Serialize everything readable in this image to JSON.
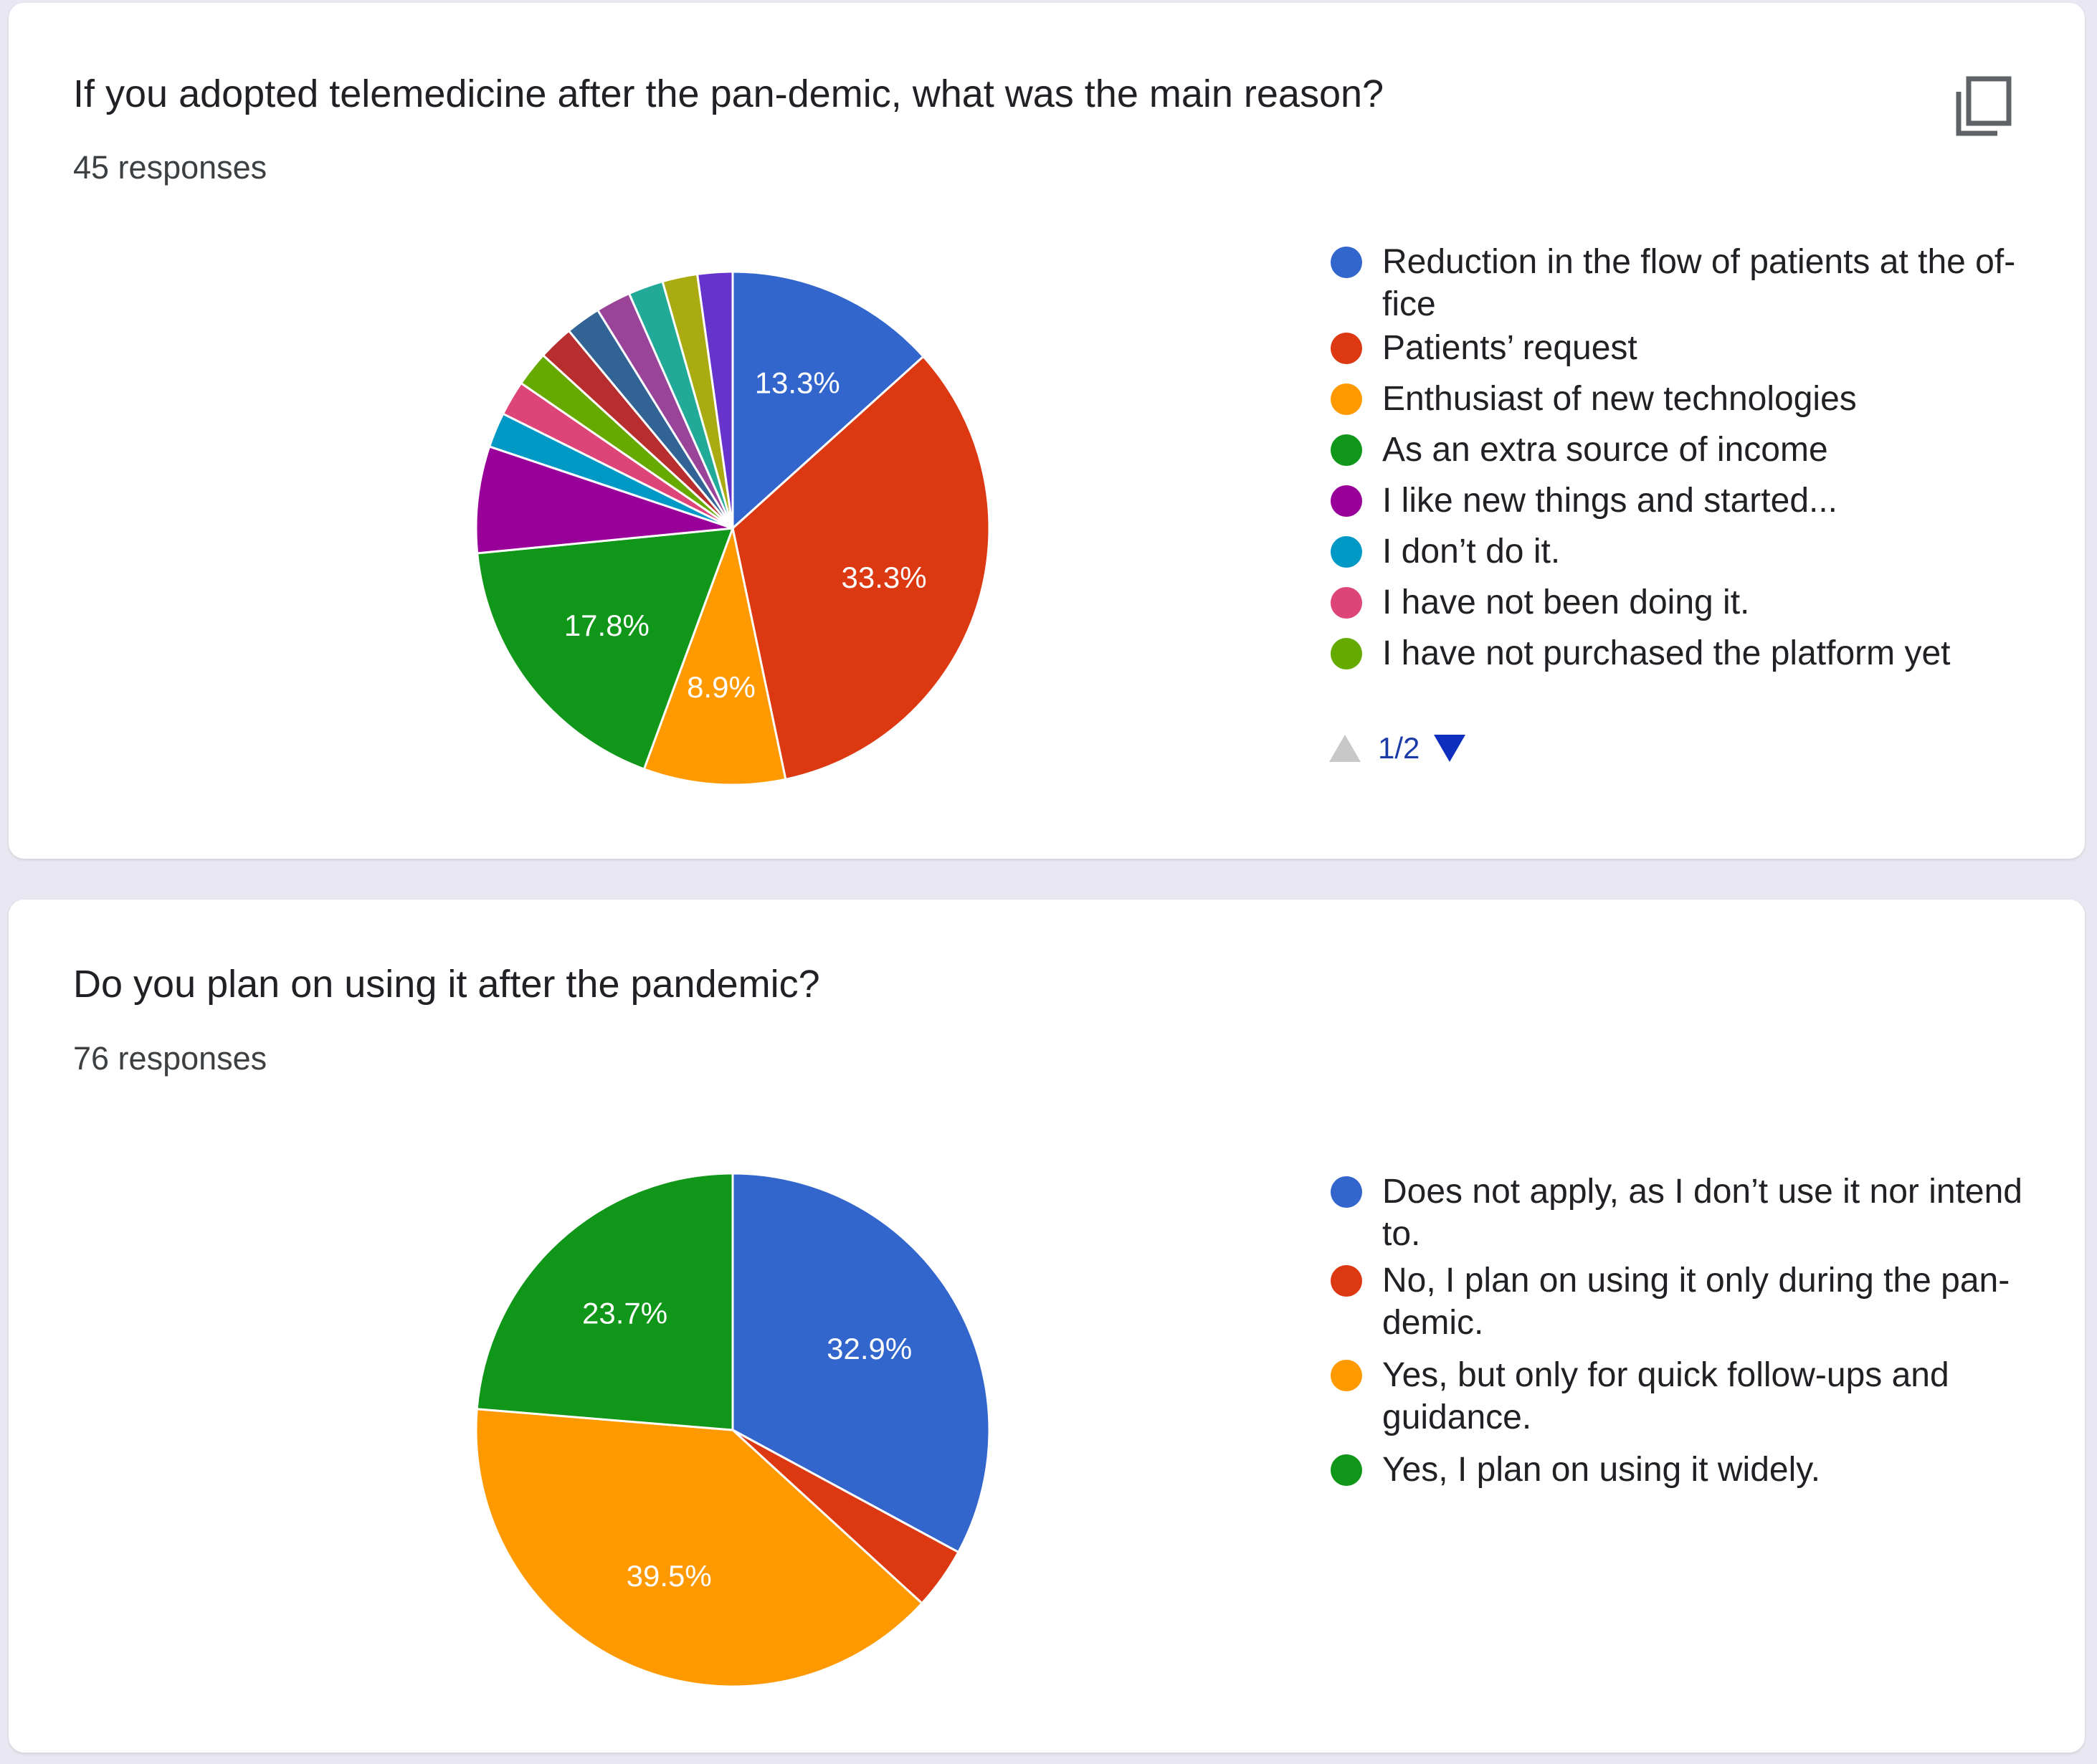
{
  "charts": [
    {
      "title": "If you adopted telemedicine after the pan-demic, what was the main reason?",
      "responses": "45 responses",
      "pager": {
        "text": "1/2",
        "up_icon": "triangle-up-icon",
        "down_icon": "triangle-down-icon"
      },
      "action_icon": "copy-icon"
    },
    {
      "title": "Do you plan on using it after the pandemic?",
      "responses": "76 responses"
    }
  ],
  "chart_data": [
    {
      "type": "pie",
      "title": "If you adopted telemedicine after the pan-demic, what was the main reason?",
      "start_angle_deg": 90,
      "direction": "clockwise",
      "legend_position": "right",
      "categories": [
        "Reduction in the flow of patients at the of-fice",
        "Patients’ request",
        "Enthusiast of new technologies",
        "As an extra source of income",
        "I like new things and started...",
        "I don’t do it.",
        "I have not been doing it.",
        "I have not purchased the platform yet",
        "",
        "",
        "",
        "",
        "",
        ""
      ],
      "legend_entries": [
        "Reduction in the flow of patients at the of-fice",
        "Patients’ request",
        "Enthusiast of new technologies",
        "As an extra source of income",
        "I like new things and started...",
        "I don’t do it.",
        "I have not been doing it.",
        "I have not purchased the platform yet"
      ],
      "values": [
        13.3,
        33.3,
        8.9,
        17.8,
        6.7,
        2.2,
        2.2,
        2.2,
        2.2,
        2.2,
        2.2,
        2.2,
        2.2,
        2.2
      ],
      "value_labels": [
        "13.3%",
        "33.3%",
        "8.9%",
        "17.8%",
        "",
        "",
        "",
        "",
        "",
        "",
        "",
        "",
        "",
        ""
      ],
      "colors": [
        "#3366cc",
        "#dc3912",
        "#ff9900",
        "#109618",
        "#990099",
        "#0099c6",
        "#dd4477",
        "#66aa00",
        "#b82e2e",
        "#316395",
        "#994499",
        "#22aa99",
        "#aaaa11",
        "#6633cc"
      ]
    },
    {
      "type": "pie",
      "title": "Do you plan on using it after the pandemic?",
      "start_angle_deg": 90,
      "direction": "clockwise",
      "legend_position": "right",
      "categories": [
        "Does not apply, as I don’t use it nor intend to.",
        "No, I plan on using it only during the pan-demic.",
        "Yes, but only for quick follow-ups and guidance.",
        "Yes, I plan on using it widely."
      ],
      "legend_entries": [
        "Does not apply, as I don’t use it nor intend to.",
        "No, I plan on using it only during the pan-demic.",
        "Yes, but only for quick follow-ups and guidance.",
        "Yes, I plan on using it widely."
      ],
      "values": [
        32.9,
        3.9,
        39.5,
        23.7
      ],
      "value_labels": [
        "32.9%",
        "",
        "39.5%",
        "23.7%"
      ],
      "colors": [
        "#3366cc",
        "#dc3912",
        "#ff9900",
        "#109618"
      ]
    }
  ]
}
